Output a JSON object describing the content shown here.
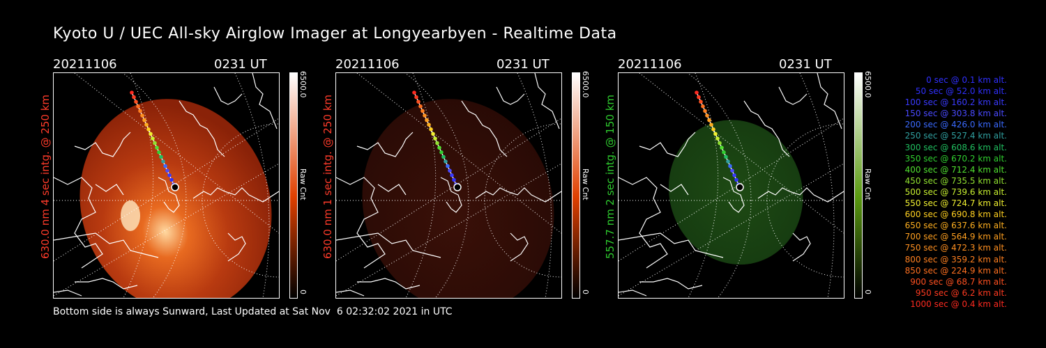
{
  "title": "Kyoto U / UEC All-sky Airglow Imager at Longyearbyen - Realtime Data",
  "footer": "Bottom side is always Sunward, Last Updated at Sat Nov  6 02:32:02 2021 in UTC",
  "panels": [
    {
      "date": "20211106",
      "time": "0231 UT",
      "label": "630.0 nm 4 sec intg. @ 250 km",
      "label_color": "#ff3b2a",
      "cbar_max": "6500.0",
      "cbar_label": "Raw Cnt",
      "cbar_min": "0",
      "cbar_color": "#e04000",
      "tint": "red-bright"
    },
    {
      "date": "20211106",
      "time": "0231 UT",
      "label": "630.0 nm 1 sec intg. @ 250 km",
      "label_color": "#ff3b2a",
      "cbar_max": "6500.0",
      "cbar_label": "Raw Cnt",
      "cbar_min": "0",
      "cbar_color": "#e04000",
      "tint": "red-dim"
    },
    {
      "date": "20211106",
      "time": "0231 UT",
      "label": "557.7 nm 2 sec intg. @ 150 km",
      "label_color": "#2ecc2e",
      "cbar_max": "6500.0",
      "cbar_label": "Raw Cnt",
      "cbar_min": "0",
      "cbar_color": "#5a9a10",
      "tint": "green"
    }
  ],
  "trajectory": [
    {
      "t": "0 sec",
      "alt": "0.1 km alt.",
      "color": "#3030ff"
    },
    {
      "t": "50 sec",
      "alt": "52.0 km alt.",
      "color": "#3030ff"
    },
    {
      "t": "100 sec",
      "alt": "160.2 km alt.",
      "color": "#3a3aff"
    },
    {
      "t": "150 sec",
      "alt": "303.8 km alt.",
      "color": "#4a4aff"
    },
    {
      "t": "200 sec",
      "alt": "426.0 km alt.",
      "color": "#3a6aff"
    },
    {
      "t": "250 sec",
      "alt": "527.4 km alt.",
      "color": "#30a0a0"
    },
    {
      "t": "300 sec",
      "alt": "608.6 km alt.",
      "color": "#20c060"
    },
    {
      "t": "350 sec",
      "alt": "670.2 km alt.",
      "color": "#30d030"
    },
    {
      "t": "400 sec",
      "alt": "712.4 km alt.",
      "color": "#50e030"
    },
    {
      "t": "450 sec",
      "alt": "735.5 km alt.",
      "color": "#90e030"
    },
    {
      "t": "500 sec",
      "alt": "739.6 km alt.",
      "color": "#c8f030"
    },
    {
      "t": "550 sec",
      "alt": "724.7 km alt.",
      "color": "#f0f030"
    },
    {
      "t": "600 sec",
      "alt": "690.8 km alt.",
      "color": "#ffd020"
    },
    {
      "t": "650 sec",
      "alt": "637.6 km alt.",
      "color": "#ffb020"
    },
    {
      "t": "700 sec",
      "alt": "564.9 km alt.",
      "color": "#ffa020"
    },
    {
      "t": "750 sec",
      "alt": "472.3 km alt.",
      "color": "#ff9020"
    },
    {
      "t": "800 sec",
      "alt": "359.2 km alt.",
      "color": "#ff8020"
    },
    {
      "t": "850 sec",
      "alt": "224.9 km alt.",
      "color": "#ff7020"
    },
    {
      "t": "900 sec",
      "alt": "68.7 km alt.",
      "color": "#ff5020"
    },
    {
      "t": "950 sec",
      "alt": "6.2 km alt.",
      "color": "#ff3a20"
    },
    {
      "t": "1000 sec",
      "alt": "0.4 km alt.",
      "color": "#ff2a20"
    }
  ]
}
